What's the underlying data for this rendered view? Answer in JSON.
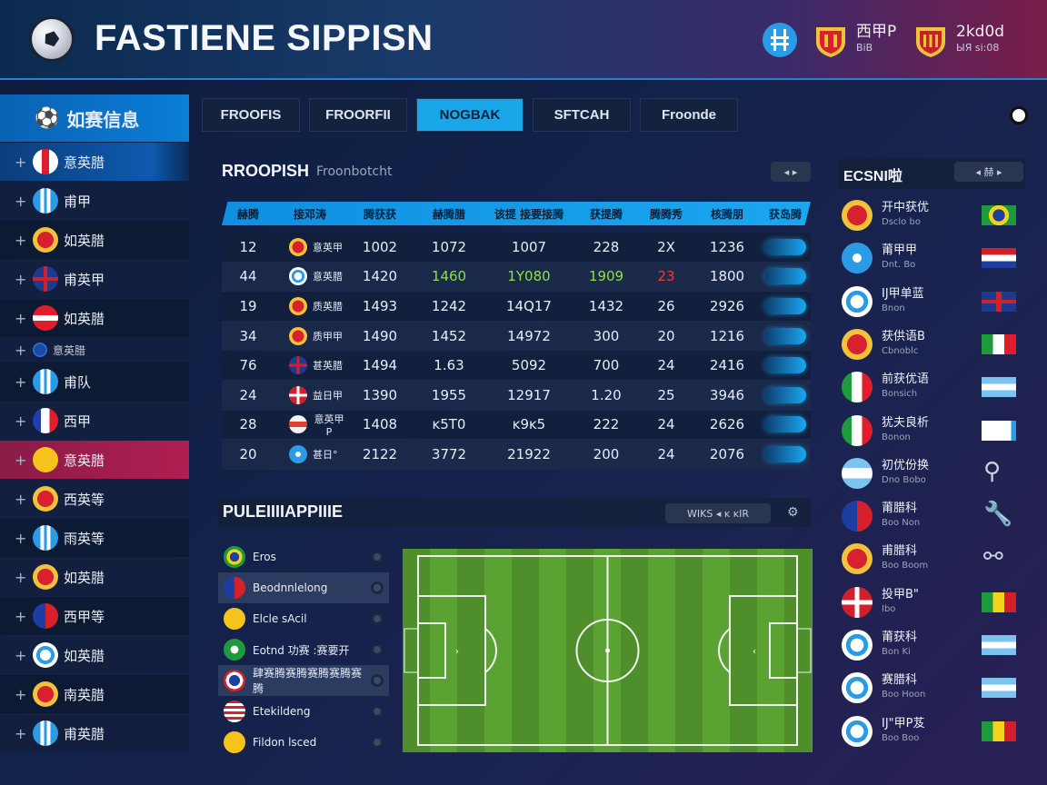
{
  "header": {
    "title": "FASTIENE SIPPISN",
    "badges": [
      {
        "icon": "blue-crest-icon",
        "top": "",
        "bottom": ""
      },
      {
        "icon": "red-gold-crest-icon",
        "top": "西甲P",
        "bottom": "BiB"
      },
      {
        "icon": "gold-crest-icon",
        "top": "2kd0d",
        "bottom": "ЫЯ si:08"
      }
    ]
  },
  "sidebar": {
    "title": "如赛信息",
    "items": [
      {
        "label": "意英腊",
        "flag": "red-white",
        "active": true
      },
      {
        "label": "甫甲",
        "flag": "blue-white"
      },
      {
        "label": "如英腊",
        "flag": "gold-crest"
      },
      {
        "label": "甫英甲",
        "flag": "uk"
      },
      {
        "label": "如英腊",
        "flag": "red-white-band"
      },
      {
        "label": "意英腊",
        "flag": "small",
        "small": true
      },
      {
        "label": "甫队",
        "flag": "blue-white"
      },
      {
        "label": "西甲",
        "flag": "france"
      },
      {
        "label": "意英腊",
        "flag": "yellow",
        "highlight": true
      },
      {
        "label": "西英等",
        "flag": "gold-crest"
      },
      {
        "label": "雨英等",
        "flag": "blue-white"
      },
      {
        "label": "如英腊",
        "flag": "gold-crest"
      },
      {
        "label": "西甲等",
        "flag": "blue-red"
      },
      {
        "label": "如英腊",
        "flag": "ball"
      },
      {
        "label": "南英腊",
        "flag": "gold-crest"
      },
      {
        "label": "甫英腊",
        "flag": "blue-white"
      }
    ]
  },
  "tabs": [
    "FROOFIS",
    "FROORFII",
    "NOGBAK",
    "SFTCAH",
    "Froonde"
  ],
  "active_tab": 2,
  "standings": {
    "title": "RROOPISH",
    "subtitle": "Froonbotcht",
    "controls": "◂ ▸",
    "columns": [
      "赫腾",
      "接邓涛",
      "腾获获",
      "赫腾腊",
      "该提 接要接腾",
      "获提腾",
      "腾腾秀",
      "核腾朋",
      "获岛腾"
    ],
    "rows": [
      {
        "rank": "12",
        "team": "意英甲",
        "a": "1002",
        "b": "1072",
        "c": "1007",
        "d": "228",
        "e": "2X",
        "f": "1236",
        "crest": "gold"
      },
      {
        "rank": "44",
        "team": "意英腊",
        "a": "1420",
        "b": "1460",
        "c": "1Y080",
        "d": "1909",
        "e": "23",
        "f": "1800",
        "crest": "ball",
        "hl": true
      },
      {
        "rank": "19",
        "team": "质英腊",
        "a": "1493",
        "b": "1242",
        "c": "14Q17",
        "d": "1432",
        "e": "26",
        "f": "2926",
        "crest": "gold"
      },
      {
        "rank": "34",
        "team": "质甲甲",
        "a": "1490",
        "b": "1452",
        "c": "14972",
        "d": "300",
        "e": "20",
        "f": "1216",
        "crest": "gold"
      },
      {
        "rank": "76",
        "team": "甚英腊",
        "a": "1494",
        "b": "1.63",
        "c": "5092",
        "d": "700",
        "e": "24",
        "f": "2416",
        "crest": "uk"
      },
      {
        "rank": "24",
        "team": "益日甲",
        "a": "1390",
        "b": "1955",
        "c": "12917",
        "d": "1.20",
        "e": "25",
        "f": "3946",
        "crest": "red-cross"
      },
      {
        "rank": "28",
        "team": "意英甲P",
        "a": "1408",
        "b": "ᴋ5T0",
        "c": "ᴋ9ᴋ5",
        "d": "222",
        "e": "24",
        "f": "2626",
        "crest": "red-band"
      },
      {
        "rank": "20",
        "team": "甚日°",
        "a": "2122",
        "b": "3772",
        "c": "21922",
        "d": "200",
        "e": "24",
        "f": "2076",
        "crest": "blue"
      }
    ]
  },
  "lineup": {
    "title": "PULEIIIIAPPIIIE",
    "control": "WIKS ◂ ᴋ ᴋIR",
    "items": [
      {
        "label": "Eros",
        "flag": "brazil"
      },
      {
        "label": "Beodnnlelong",
        "flag": "blue-red",
        "hl": true
      },
      {
        "label": "Elcle sAcil",
        "flag": "yellow"
      },
      {
        "label": "Eotnd 功赛 :赛要开",
        "flag": "green"
      },
      {
        "label": "肆赛腾赛腾赛腾赛腾赛腾",
        "flag": "crest",
        "hl": true
      },
      {
        "label": "Etekildeng",
        "flag": "usa"
      },
      {
        "label": "Fildon lsced",
        "flag": "yellow"
      }
    ]
  },
  "right_panel": {
    "title": "ECSNI啦",
    "control": "◂ 赫 ▸",
    "items": [
      {
        "name": "开中获优",
        "sub": "Dsclo bo",
        "crest": "gold",
        "flag": "brazil"
      },
      {
        "name": "莆甲甲",
        "sub": "Dnt. Bo",
        "crest": "blue",
        "flag": "netherlands"
      },
      {
        "name": "IJ甲单蓝",
        "sub": "Bnon",
        "crest": "ball",
        "flag": "uk"
      },
      {
        "name": "获供语B",
        "sub": "Cbnoblc",
        "crest": "gold",
        "flag": "italy"
      },
      {
        "name": "前获优语",
        "sub": "Bonsich",
        "crest": "italy",
        "flag": "argentina"
      },
      {
        "name": "犹夫良析",
        "sub": "Bonon",
        "crest": "italy",
        "flag": "white-blue"
      },
      {
        "name": "初优份换",
        "sub": "Dno Bobo",
        "crest": "argentina",
        "tool": "⚲"
      },
      {
        "name": "莆腊科",
        "sub": "Boo Non",
        "crest": "blue-red",
        "tool": "🔧"
      },
      {
        "name": "甫腊科",
        "sub": "Boo Boom",
        "crest": "gold",
        "tool": "⚯"
      },
      {
        "name": "投甲B\"",
        "sub": "Ibo",
        "crest": "red-cross",
        "flag": "yellow-red"
      },
      {
        "name": "莆获科",
        "sub": "Bon Ki",
        "crest": "ball",
        "flag": "argentina"
      },
      {
        "name": "赛腊科",
        "sub": "Boo Hoon",
        "crest": "ball",
        "flag": "argentina"
      },
      {
        "name": "IJ\"甲P芨",
        "sub": "Boo Boo",
        "crest": "ball",
        "flag": "yellow-red"
      }
    ]
  }
}
